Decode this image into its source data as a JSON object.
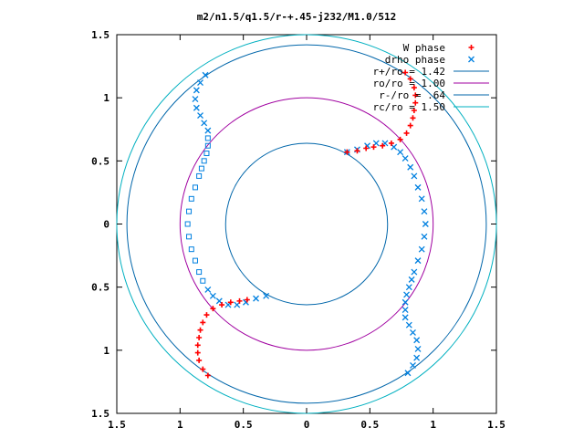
{
  "chart_data": {
    "type": "scatter",
    "title": "m2/n1.5/q1.5/r-+.45-j232/M1.0/512",
    "xlabel": "",
    "ylabel": "",
    "xlim": [
      -1.5,
      1.5
    ],
    "ylim": [
      -1.5,
      1.5
    ],
    "x_tick_labels": [
      "1.5",
      "1",
      "0.5",
      "0",
      "0.5",
      "1",
      "1.5"
    ],
    "y_tick_labels": [
      "1.5",
      "1",
      "0.5",
      "0",
      "0.5",
      "1",
      "1.5"
    ],
    "grid": false,
    "legend_position": "top-right",
    "legend": [
      "W phase",
      "drho phase",
      "r+/ro = 1.42",
      "ro/ro = 1.00",
      "r-/ro = .64",
      "rc/ro = 1.50"
    ],
    "colors": {
      "w_phase": "#ff0000",
      "drho_phase": "#0080e0",
      "r_plus": "#0066aa",
      "r_o": "#a000a0",
      "r_minus": "#0066aa",
      "r_c": "#00b0c0"
    },
    "series": [
      {
        "name": "W phase",
        "marker": "plus",
        "points": [
          [
            -0.78,
            -1.2
          ],
          [
            -0.82,
            -1.15
          ],
          [
            -0.85,
            -1.08
          ],
          [
            -0.86,
            -1.02
          ],
          [
            -0.86,
            -0.96
          ],
          [
            -0.85,
            -0.9
          ],
          [
            -0.84,
            -0.84
          ],
          [
            -0.82,
            -0.78
          ],
          [
            -0.79,
            -0.72
          ],
          [
            -0.74,
            -0.67
          ],
          [
            -0.67,
            -0.64
          ],
          [
            -0.6,
            -0.62
          ],
          [
            -0.53,
            -0.61
          ],
          [
            -0.47,
            -0.6
          ],
          [
            0.78,
            1.2
          ],
          [
            0.82,
            1.15
          ],
          [
            0.85,
            1.08
          ],
          [
            0.86,
            1.02
          ],
          [
            0.86,
            0.96
          ],
          [
            0.85,
            0.9
          ],
          [
            0.84,
            0.84
          ],
          [
            0.82,
            0.78
          ],
          [
            0.79,
            0.72
          ],
          [
            0.74,
            0.67
          ],
          [
            0.67,
            0.64
          ],
          [
            0.6,
            0.62
          ],
          [
            0.53,
            0.61
          ],
          [
            0.47,
            0.6
          ],
          [
            0.4,
            0.58
          ],
          [
            0.32,
            0.57
          ]
        ]
      },
      {
        "name": "drho phase",
        "marker": "square-and-cross",
        "points": [
          [
            -0.8,
            1.18
          ],
          [
            -0.84,
            1.12
          ],
          [
            -0.87,
            1.06
          ],
          [
            -0.88,
            0.99
          ],
          [
            -0.87,
            0.92
          ],
          [
            -0.84,
            0.86
          ],
          [
            -0.81,
            0.8
          ],
          [
            -0.78,
            0.74
          ],
          [
            -0.78,
            0.68
          ],
          [
            -0.78,
            0.62
          ],
          [
            -0.79,
            0.56
          ],
          [
            -0.81,
            0.5
          ],
          [
            -0.83,
            0.44
          ],
          [
            -0.85,
            0.38
          ],
          [
            -0.88,
            0.29
          ],
          [
            -0.91,
            0.2
          ],
          [
            -0.93,
            0.1
          ],
          [
            -0.94,
            0.0
          ],
          [
            -0.93,
            -0.1
          ],
          [
            -0.91,
            -0.2
          ],
          [
            -0.88,
            -0.29
          ],
          [
            -0.85,
            -0.38
          ],
          [
            -0.82,
            -0.45
          ],
          [
            -0.78,
            -0.52
          ],
          [
            -0.74,
            -0.57
          ],
          [
            -0.69,
            -0.61
          ],
          [
            -0.62,
            -0.64
          ],
          [
            -0.55,
            -0.64
          ],
          [
            -0.48,
            -0.62
          ],
          [
            -0.4,
            -0.59
          ],
          [
            -0.32,
            -0.57
          ],
          [
            0.32,
            0.57
          ],
          [
            0.4,
            0.59
          ],
          [
            0.48,
            0.62
          ],
          [
            0.55,
            0.64
          ],
          [
            0.62,
            0.64
          ],
          [
            0.69,
            0.61
          ],
          [
            0.74,
            0.57
          ],
          [
            0.78,
            0.52
          ],
          [
            0.82,
            0.45
          ],
          [
            0.85,
            0.38
          ],
          [
            0.88,
            0.29
          ],
          [
            0.91,
            0.2
          ],
          [
            0.93,
            0.1
          ],
          [
            0.94,
            0.0
          ],
          [
            0.93,
            -0.1
          ],
          [
            0.91,
            -0.2
          ],
          [
            0.88,
            -0.29
          ],
          [
            0.85,
            -0.38
          ],
          [
            0.83,
            -0.44
          ],
          [
            0.81,
            -0.5
          ],
          [
            0.79,
            -0.56
          ],
          [
            0.78,
            -0.62
          ],
          [
            0.78,
            -0.68
          ],
          [
            0.78,
            -0.74
          ],
          [
            0.81,
            -0.8
          ],
          [
            0.84,
            -0.86
          ],
          [
            0.87,
            -0.92
          ],
          [
            0.88,
            -0.99
          ],
          [
            0.87,
            -1.06
          ],
          [
            0.84,
            -1.12
          ],
          [
            0.8,
            -1.18
          ]
        ]
      }
    ],
    "circles": [
      {
        "name": "r+/ro = 1.42",
        "radius": 1.42
      },
      {
        "name": "ro/ro = 1.00",
        "radius": 1.0
      },
      {
        "name": "r-/ro = .64",
        "radius": 0.64
      },
      {
        "name": "rc/ro = 1.50",
        "radius": 1.5
      }
    ]
  }
}
